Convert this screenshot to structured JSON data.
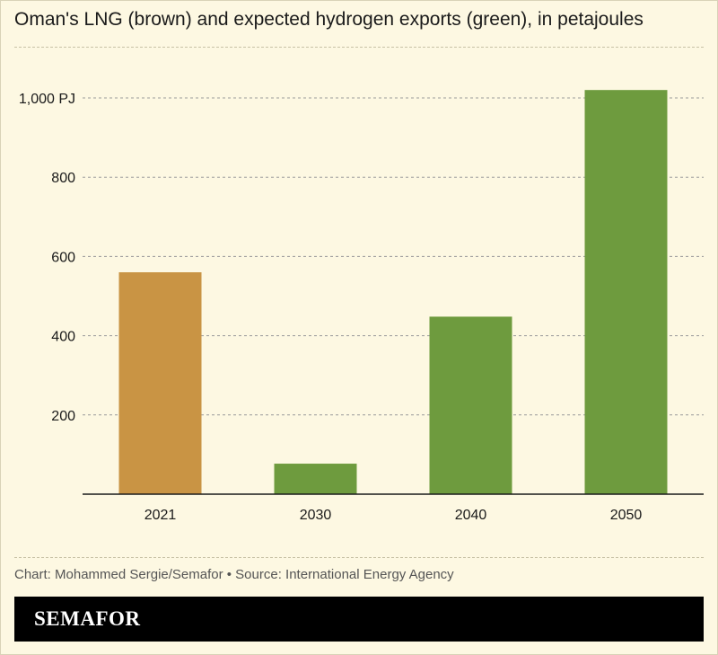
{
  "title": "Oman's LNG (brown) and expected hydrogen exports (green), in petajoules",
  "source": "Chart: Mohammed Sergie/Semafor • Source: International Energy Agency",
  "brand": "SEMAFOR",
  "colors": {
    "lng": "#c99444",
    "hydrogen": "#6e9b3e",
    "background": "#fdf8e2"
  },
  "chart_data": {
    "type": "bar",
    "categories": [
      "2021",
      "2030",
      "2040",
      "2050"
    ],
    "values": [
      560,
      77,
      448,
      1020
    ],
    "bar_colors": [
      "#c99444",
      "#6e9b3e",
      "#6e9b3e",
      "#6e9b3e"
    ],
    "y_ticks": [
      200,
      400,
      600,
      800,
      1000
    ],
    "y_tick_labels": [
      "200",
      "400",
      "600",
      "800",
      "1,000 PJ"
    ],
    "ylim": [
      0,
      1000
    ],
    "grid": true
  }
}
